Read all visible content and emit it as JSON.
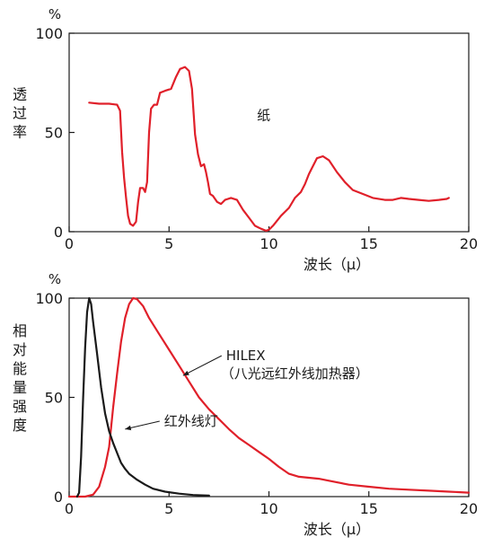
{
  "chart_data": [
    {
      "type": "line",
      "ylabel_chars": [
        "透",
        "过",
        "率"
      ],
      "yunit": "%",
      "xlabel": "波长（μ）",
      "xlim": [
        0,
        20
      ],
      "ylim": [
        0,
        100
      ],
      "xticks": [
        "0",
        "5",
        "10",
        "15",
        "20"
      ],
      "yticks": [
        "0",
        "50",
        "100"
      ],
      "grid": false,
      "annotations": [
        {
          "text": "纸",
          "x": 9.4,
          "y": 59
        }
      ],
      "series": [
        {
          "color": "#e0202a",
          "points": [
            [
              1.0,
              65
            ],
            [
              1.5,
              64.5
            ],
            [
              2.0,
              64.5
            ],
            [
              2.4,
              64
            ],
            [
              2.55,
              61
            ],
            [
              2.65,
              40
            ],
            [
              2.75,
              27
            ],
            [
              2.85,
              17
            ],
            [
              2.95,
              8
            ],
            [
              3.05,
              4
            ],
            [
              3.2,
              3
            ],
            [
              3.35,
              5
            ],
            [
              3.45,
              15
            ],
            [
              3.55,
              22
            ],
            [
              3.7,
              22
            ],
            [
              3.8,
              20
            ],
            [
              3.9,
              25
            ],
            [
              4.0,
              50
            ],
            [
              4.1,
              62
            ],
            [
              4.25,
              64
            ],
            [
              4.4,
              64
            ],
            [
              4.55,
              70
            ],
            [
              4.8,
              71
            ],
            [
              5.1,
              72
            ],
            [
              5.35,
              78
            ],
            [
              5.55,
              82
            ],
            [
              5.8,
              83
            ],
            [
              6.0,
              81
            ],
            [
              6.15,
              72
            ],
            [
              6.3,
              49
            ],
            [
              6.45,
              39
            ],
            [
              6.6,
              33
            ],
            [
              6.75,
              34
            ],
            [
              6.85,
              30
            ],
            [
              6.95,
              25
            ],
            [
              7.05,
              19
            ],
            [
              7.2,
              18
            ],
            [
              7.4,
              15
            ],
            [
              7.6,
              14
            ],
            [
              7.8,
              16
            ],
            [
              8.1,
              17
            ],
            [
              8.4,
              16
            ],
            [
              8.7,
              11
            ],
            [
              9.0,
              7
            ],
            [
              9.3,
              3
            ],
            [
              9.6,
              1.5
            ],
            [
              9.85,
              0.5
            ],
            [
              10.0,
              1
            ],
            [
              10.2,
              3
            ],
            [
              10.6,
              8
            ],
            [
              11.0,
              12
            ],
            [
              11.3,
              17
            ],
            [
              11.6,
              20
            ],
            [
              11.8,
              24
            ],
            [
              12.0,
              29
            ],
            [
              12.2,
              33
            ],
            [
              12.4,
              37
            ],
            [
              12.7,
              38
            ],
            [
              13.0,
              36
            ],
            [
              13.4,
              30
            ],
            [
              13.8,
              25
            ],
            [
              14.2,
              21
            ],
            [
              14.7,
              19
            ],
            [
              15.2,
              17
            ],
            [
              15.8,
              16
            ],
            [
              16.2,
              16
            ],
            [
              16.6,
              17
            ],
            [
              17.0,
              16.5
            ],
            [
              17.5,
              16
            ],
            [
              18.0,
              15.5
            ],
            [
              18.5,
              16
            ],
            [
              18.9,
              16.5
            ],
            [
              19.0,
              17
            ]
          ]
        }
      ]
    },
    {
      "type": "line",
      "ylabel_chars": [
        "相",
        "对",
        "能",
        "量",
        "强",
        "度"
      ],
      "yunit": "%",
      "xlabel": "波长（μ）",
      "xlim": [
        0,
        20
      ],
      "ylim": [
        0,
        100
      ],
      "xticks": [
        "0",
        "5",
        "10",
        "15",
        "20"
      ],
      "yticks": [
        "0",
        "50",
        "100"
      ],
      "grid": false,
      "annotations": [
        {
          "lines": [
            "HILEX",
            "（八光远红外线加热器）"
          ],
          "x": 7.0,
          "y": 71,
          "arrow_to": [
            5.7,
            61
          ]
        },
        {
          "lines": [
            "红外线灯"
          ],
          "x": 3.9,
          "y": 38,
          "arrow_to": [
            2.8,
            34
          ]
        }
      ],
      "series": [
        {
          "color": "#e0202a",
          "points": [
            [
              0.0,
              0
            ],
            [
              0.8,
              0
            ],
            [
              1.2,
              1
            ],
            [
              1.5,
              5
            ],
            [
              1.8,
              15
            ],
            [
              2.0,
              25
            ],
            [
              2.2,
              45
            ],
            [
              2.4,
              62
            ],
            [
              2.6,
              78
            ],
            [
              2.8,
              90
            ],
            [
              3.0,
              97
            ],
            [
              3.2,
              100
            ],
            [
              3.4,
              99.5
            ],
            [
              3.7,
              96
            ],
            [
              4.0,
              90
            ],
            [
              4.5,
              82
            ],
            [
              5.0,
              74
            ],
            [
              5.5,
              66
            ],
            [
              6.0,
              58
            ],
            [
              6.5,
              50
            ],
            [
              7.0,
              44
            ],
            [
              7.5,
              39
            ],
            [
              8.0,
              34
            ],
            [
              8.5,
              29.5
            ],
            [
              9.0,
              26
            ],
            [
              9.5,
              22.5
            ],
            [
              10.0,
              19
            ],
            [
              10.5,
              15
            ],
            [
              11.0,
              11.5
            ],
            [
              11.5,
              10
            ],
            [
              12.0,
              9.5
            ],
            [
              12.5,
              9
            ],
            [
              13.0,
              8
            ],
            [
              14.0,
              6
            ],
            [
              15.0,
              5
            ],
            [
              16.0,
              4
            ],
            [
              17.0,
              3.5
            ],
            [
              18.0,
              3
            ],
            [
              19.0,
              2.5
            ],
            [
              20.0,
              2
            ]
          ]
        },
        {
          "color": "#1a1a1a",
          "points": [
            [
              0.4,
              0
            ],
            [
              0.5,
              2
            ],
            [
              0.6,
              20
            ],
            [
              0.7,
              50
            ],
            [
              0.8,
              75
            ],
            [
              0.9,
              93
            ],
            [
              1.0,
              100
            ],
            [
              1.1,
              97
            ],
            [
              1.2,
              88
            ],
            [
              1.4,
              72
            ],
            [
              1.6,
              55
            ],
            [
              1.8,
              42
            ],
            [
              2.0,
              33
            ],
            [
              2.2,
              27
            ],
            [
              2.4,
              22
            ],
            [
              2.6,
              17
            ],
            [
              2.8,
              14
            ],
            [
              3.0,
              11.5
            ],
            [
              3.4,
              8.5
            ],
            [
              3.8,
              6
            ],
            [
              4.2,
              4
            ],
            [
              4.8,
              2.5
            ],
            [
              5.5,
              1.5
            ],
            [
              6.2,
              0.8
            ],
            [
              7.0,
              0.5
            ]
          ]
        }
      ]
    }
  ]
}
